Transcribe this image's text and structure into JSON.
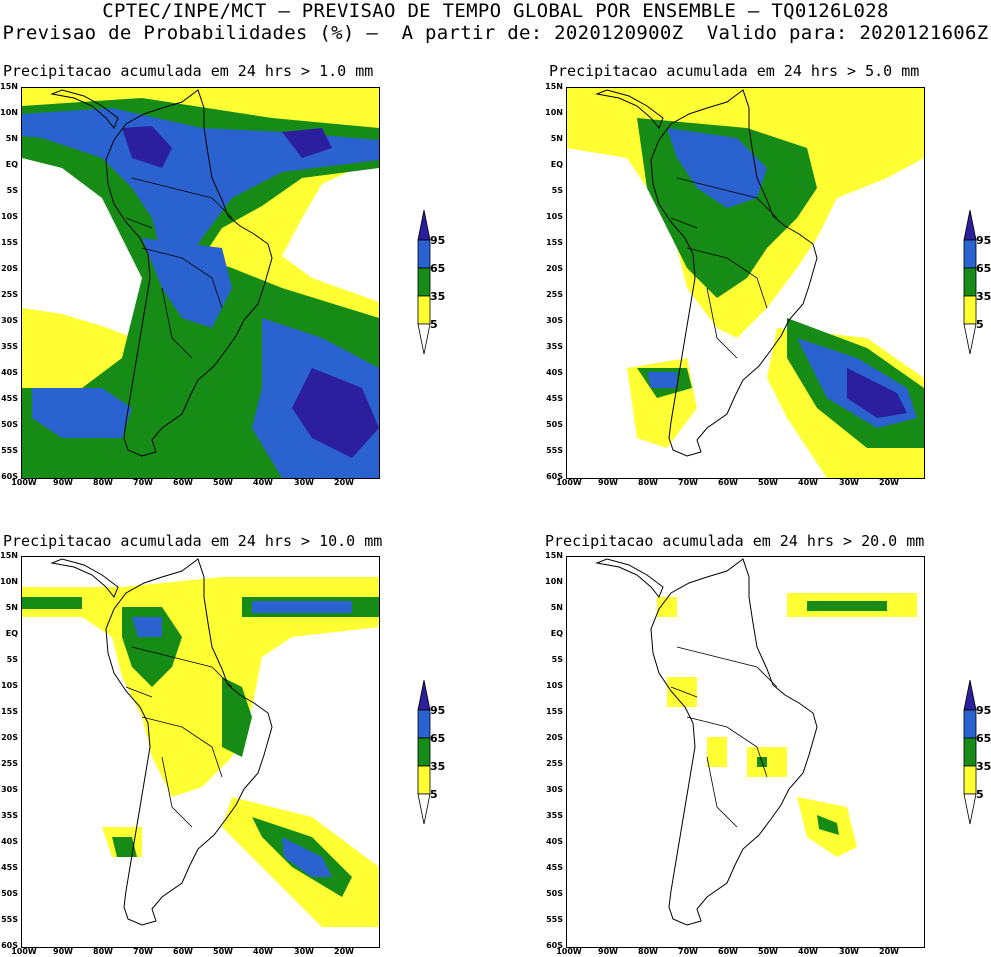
{
  "header": {
    "line1": "CPTEC/INPE/MCT – PREVISAO DE TEMPO GLOBAL POR ENSEMBLE – TQ0126L028",
    "line2": "Previsao de Probabilidades (%) –  A partir de: 2020120900Z  Valido para: 2020121606Z"
  },
  "axes": {
    "lat_labels": [
      "15N",
      "10N",
      "5N",
      "EQ",
      "5S",
      "10S",
      "15S",
      "20S",
      "25S",
      "30S",
      "35S",
      "40S",
      "45S",
      "50S",
      "55S",
      "60S"
    ],
    "lon_labels": [
      "100W",
      "90W",
      "80W",
      "70W",
      "60W",
      "50W",
      "40W",
      "30W",
      "20W"
    ]
  },
  "legend": {
    "levels": [
      "95",
      "65",
      "35",
      "5"
    ],
    "colors": {
      "p95": "#2b1f9e",
      "p65": "#2a62d0",
      "p35": "#168c16",
      "p5": "#ffff33",
      "none": "#ffffff"
    }
  },
  "panels": [
    {
      "title": "Precipitacao acumulada em 24 hrs > 1.0 mm",
      "threshold": 1.0,
      "coverage": 4
    },
    {
      "title": "Precipitacao acumulada em 24 hrs > 5.0 mm",
      "threshold": 5.0,
      "coverage": 3
    },
    {
      "title": "Precipitacao acumulada em 24 hrs > 10.0 mm",
      "threshold": 10.0,
      "coverage": 2
    },
    {
      "title": "Precipitacao acumulada em 24 hrs > 20.0 mm",
      "threshold": 20.0,
      "coverage": 1
    }
  ]
}
